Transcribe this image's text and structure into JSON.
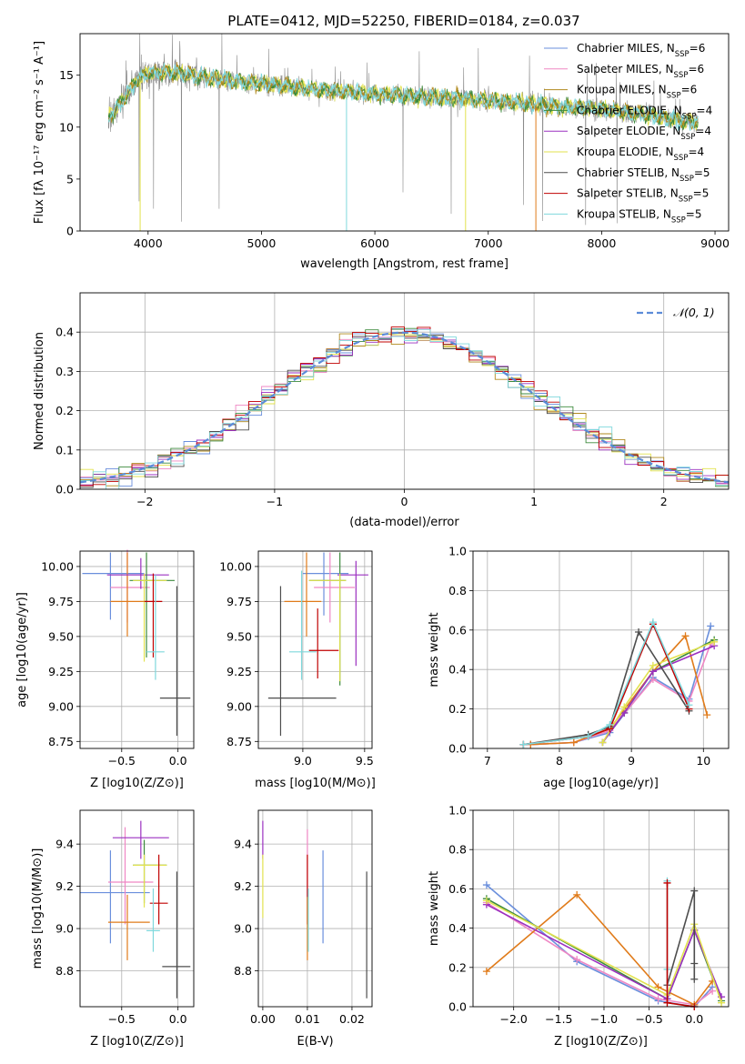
{
  "figure": {
    "title": "PLATE=0412, MJD=52250, FIBERID=0184, z=0.037"
  },
  "colors": {
    "Chabrier MILES": "#6a8fdc",
    "Salpeter MILES": "#ef87c4",
    "Kroupa MILES": "#b08a1e",
    "Chabrier ELODIE": "#3c8a3c",
    "Salpeter ELODIE": "#9b30c0",
    "Kroupa ELODIE": "#e2e24e",
    "Chabrier STELIB": "#4d4d4d",
    "Salpeter STELIB": "#c00000",
    "Kroupa STELIB": "#7fd8dc",
    "normal": "#5b8bd8",
    "orange": "#e07b1a",
    "grid": "#b0b0b0"
  },
  "chart_data": [
    {
      "id": "spectrum",
      "type": "line",
      "xlabel": "wavelength [Angstrom, rest frame]",
      "ylabel": "Flux [fλ 10⁻¹⁷ erg cm⁻² s⁻¹ A⁻¹]",
      "xlim": [
        3400,
        9120
      ],
      "ylim": [
        0,
        19
      ],
      "xticks": [
        4000,
        5000,
        6000,
        7000,
        8000,
        9000
      ],
      "yticks": [
        0,
        5,
        10,
        15
      ],
      "legend_position": "top-right",
      "series": [
        {
          "name": "Chabrier MILES, N_SSP=6",
          "color_key": "Chabrier MILES"
        },
        {
          "name": "Salpeter MILES, N_SSP=6",
          "color_key": "Salpeter MILES"
        },
        {
          "name": "Kroupa MILES, N_SSP=6",
          "color_key": "Kroupa MILES"
        },
        {
          "name": "Chabrier ELODIE, N_SSP=4",
          "color_key": "Chabrier ELODIE"
        },
        {
          "name": "Salpeter ELODIE, N_SSP=4",
          "color_key": "Salpeter ELODIE"
        },
        {
          "name": "Kroupa ELODIE, N_SSP=4",
          "color_key": "Kroupa ELODIE"
        },
        {
          "name": "Chabrier STELIB, N_SSP=5",
          "color_key": "Chabrier STELIB"
        },
        {
          "name": "Salpeter STELIB, N_SSP=5",
          "color_key": "Salpeter STELIB"
        },
        {
          "name": "Kroupa STELIB, N_SSP=5",
          "color_key": "Kroupa STELIB"
        }
      ],
      "continuum": {
        "x": [
          3650,
          3700,
          3800,
          3900,
          4000,
          4200,
          4500,
          5000,
          5500,
          6000,
          6500,
          7000,
          7500,
          8000,
          8500,
          8850
        ],
        "y": [
          11.0,
          11.5,
          13.0,
          14.5,
          15.2,
          15.3,
          14.8,
          14.2,
          13.6,
          13.2,
          12.9,
          12.6,
          12.1,
          11.7,
          11.0,
          10.4
        ]
      },
      "data_range": [
        3650,
        8850
      ]
    },
    {
      "id": "residuals",
      "type": "step",
      "xlabel": "(data-model)/error",
      "ylabel": "Normed distribution",
      "xlim": [
        -2.5,
        2.5
      ],
      "ylim": [
        0,
        0.5
      ],
      "xticks": [
        -2,
        -1,
        0,
        1,
        2
      ],
      "yticks": [
        0.0,
        0.1,
        0.2,
        0.3,
        0.4
      ],
      "legend_position": "top-right",
      "legend": [
        "𝒩(0, 1)"
      ],
      "bin_width": 0.1
    },
    {
      "id": "age-vs-Z",
      "type": "errorbar",
      "xlabel": "Z [log10(Z/Z⊙)]",
      "ylabel": "age  [log10(age/yr)]",
      "xlim": [
        -0.87,
        0.14
      ],
      "ylim": [
        8.7,
        10.11
      ],
      "xticks": [
        -0.5,
        0.0
      ],
      "yticks": [
        8.75,
        9.0,
        9.25,
        9.5,
        9.75,
        10.0
      ],
      "points": [
        {
          "color_key": "Chabrier MILES",
          "x": -0.6,
          "y": 9.95,
          "xerr": [
            0.25,
            0.3
          ],
          "yerr": [
            0.33,
            0.15
          ]
        },
        {
          "color_key": "Salpeter MILES",
          "x": -0.45,
          "y": 9.85,
          "xerr": [
            0.15,
            0.2
          ],
          "yerr": [
            0.25,
            0.27
          ]
        },
        {
          "color_key": "orange",
          "x": -0.45,
          "y": 9.75,
          "xerr": [
            0.15,
            0.15
          ],
          "yerr": [
            0.25,
            0.35
          ]
        },
        {
          "color_key": "Salpeter ELODIE",
          "x": -0.33,
          "y": 9.94,
          "xerr": [
            0.3,
            0.25
          ],
          "yerr": [
            0.1,
            0.12
          ]
        },
        {
          "color_key": "Chabrier ELODIE",
          "x": -0.28,
          "y": 9.9,
          "xerr": [
            0.15,
            0.25
          ],
          "yerr": [
            0.55,
            0.2
          ]
        },
        {
          "color_key": "Kroupa ELODIE",
          "x": -0.3,
          "y": 9.9,
          "xerr": [
            0.1,
            0.2
          ],
          "yerr": [
            0.58,
            0.05
          ]
        },
        {
          "color_key": "Salpeter STELIB",
          "x": -0.22,
          "y": 9.75,
          "xerr": [
            0.08,
            0.08
          ],
          "yerr": [
            0.4,
            0.2
          ]
        },
        {
          "color_key": "Kroupa STELIB",
          "x": -0.2,
          "y": 9.39,
          "xerr": [
            0.08,
            0.08
          ],
          "yerr": [
            0.2,
            0.55
          ]
        },
        {
          "color_key": "Chabrier STELIB",
          "x": -0.01,
          "y": 9.06,
          "xerr": [
            0.15,
            0.12
          ],
          "yerr": [
            0.27,
            0.8
          ]
        }
      ]
    },
    {
      "id": "age-vs-mass",
      "type": "errorbar",
      "xlabel": "mass [log10(M/M⊙)]",
      "ylabel": "",
      "xlim": [
        8.64,
        9.56
      ],
      "ylim": [
        8.7,
        10.11
      ],
      "xticks": [
        9.0,
        9.5
      ],
      "yticks": [
        8.75,
        9.0,
        9.25,
        9.5,
        9.75,
        10.0
      ],
      "points": [
        {
          "color_key": "Chabrier MILES",
          "x": 9.17,
          "y": 9.95,
          "xerr": [
            0.17,
            0.2
          ],
          "yerr": [
            0.3,
            0.15
          ]
        },
        {
          "color_key": "Salpeter MILES",
          "x": 9.22,
          "y": 9.85,
          "xerr": [
            0.13,
            0.2
          ],
          "yerr": [
            0.25,
            0.25
          ]
        },
        {
          "color_key": "orange",
          "x": 9.03,
          "y": 9.75,
          "xerr": [
            0.18,
            0.12
          ],
          "yerr": [
            0.25,
            0.35
          ]
        },
        {
          "color_key": "Salpeter ELODIE",
          "x": 9.43,
          "y": 9.94,
          "xerr": [
            0.15,
            0.1
          ],
          "yerr": [
            0.65,
            0.1
          ]
        },
        {
          "color_key": "Chabrier ELODIE",
          "x": 9.3,
          "y": 9.9,
          "xerr": [
            0.25,
            0.05
          ],
          "yerr": [
            0.75,
            0.2
          ]
        },
        {
          "color_key": "Kroupa ELODIE",
          "x": 9.3,
          "y": 9.9,
          "xerr": [
            0.25,
            0.05
          ],
          "yerr": [
            0.72,
            0.05
          ]
        },
        {
          "color_key": "Salpeter STELIB",
          "x": 9.12,
          "y": 9.4,
          "xerr": [
            0.07,
            0.17
          ],
          "yerr": [
            0.2,
            0.3
          ]
        },
        {
          "color_key": "Kroupa STELIB",
          "x": 8.99,
          "y": 9.39,
          "xerr": [
            0.1,
            0.12
          ],
          "yerr": [
            0.2,
            0.58
          ]
        },
        {
          "color_key": "Chabrier STELIB",
          "x": 8.82,
          "y": 9.06,
          "xerr": [
            0.1,
            0.45
          ],
          "yerr": [
            0.27,
            0.8
          ]
        }
      ]
    },
    {
      "id": "massweight-vs-age",
      "type": "line",
      "xlabel": "age  [log10(age/yr)]",
      "ylabel": "mass weight",
      "xlim": [
        6.8,
        10.35
      ],
      "ylim": [
        0,
        1.0
      ],
      "xticks": [
        7,
        8,
        9,
        10
      ],
      "yticks": [
        0.0,
        0.2,
        0.4,
        0.6,
        0.8,
        1.0
      ],
      "series": [
        {
          "color_key": "Chabrier MILES",
          "x": [
            7.6,
            8.2,
            8.7,
            9.3,
            9.8,
            10.1
          ],
          "y": [
            0.02,
            0.03,
            0.08,
            0.36,
            0.25,
            0.62
          ]
        },
        {
          "color_key": "Salpeter MILES",
          "x": [
            7.6,
            8.2,
            8.7,
            9.3,
            9.8,
            10.1
          ],
          "y": [
            0.02,
            0.03,
            0.09,
            0.35,
            0.24,
            0.53
          ]
        },
        {
          "color_key": "orange",
          "x": [
            7.6,
            8.2,
            8.7,
            9.3,
            9.75,
            10.05
          ],
          "y": [
            0.02,
            0.03,
            0.1,
            0.39,
            0.57,
            0.17
          ]
        },
        {
          "color_key": "Chabrier ELODIE",
          "x": [
            8.6,
            8.9,
            9.3,
            10.15
          ],
          "y": [
            0.03,
            0.18,
            0.39,
            0.55
          ]
        },
        {
          "color_key": "Salpeter ELODIE",
          "x": [
            8.6,
            8.9,
            9.3,
            10.15
          ],
          "y": [
            0.03,
            0.18,
            0.39,
            0.52
          ]
        },
        {
          "color_key": "Kroupa ELODIE",
          "x": [
            8.6,
            8.9,
            9.3,
            10.15
          ],
          "y": [
            0.03,
            0.21,
            0.42,
            0.54
          ]
        },
        {
          "color_key": "Chabrier STELIB",
          "x": [
            7.5,
            8.4,
            8.7,
            9.1,
            9.8
          ],
          "y": [
            0.02,
            0.07,
            0.11,
            0.59,
            0.19
          ]
        },
        {
          "color_key": "Salpeter STELIB",
          "x": [
            7.5,
            8.4,
            8.7,
            9.3,
            9.8
          ],
          "y": [
            0.02,
            0.06,
            0.1,
            0.63,
            0.2
          ]
        },
        {
          "color_key": "Kroupa STELIB",
          "x": [
            7.5,
            8.4,
            8.7,
            9.3,
            9.8
          ],
          "y": [
            0.02,
            0.06,
            0.12,
            0.64,
            0.22
          ]
        }
      ]
    },
    {
      "id": "mass-vs-Z",
      "type": "errorbar",
      "xlabel": "Z [log10(Z/Z⊙)]",
      "ylabel": "mass [log10(M/M⊙)]",
      "xlim": [
        -0.87,
        0.14
      ],
      "ylim": [
        8.63,
        9.56
      ],
      "xticks": [
        -0.5,
        0.0
      ],
      "yticks": [
        8.8,
        9.0,
        9.2,
        9.4
      ],
      "points": [
        {
          "color_key": "Chabrier MILES",
          "x": -0.6,
          "y": 9.17,
          "xerr": [
            0.27,
            0.35
          ],
          "yerr": [
            0.24,
            0.2
          ]
        },
        {
          "color_key": "Salpeter MILES",
          "x": -0.47,
          "y": 9.22,
          "xerr": [
            0.15,
            0.25
          ],
          "yerr": [
            0.2,
            0.26
          ]
        },
        {
          "color_key": "orange",
          "x": -0.45,
          "y": 9.03,
          "xerr": [
            0.17,
            0.2
          ],
          "yerr": [
            0.18,
            0.13
          ]
        },
        {
          "color_key": "Salpeter ELODIE",
          "x": -0.33,
          "y": 9.43,
          "xerr": [
            0.25,
            0.25
          ],
          "yerr": [
            0.1,
            0.08
          ]
        },
        {
          "color_key": "Chabrier ELODIE",
          "x": -0.3,
          "y": 9.3,
          "xerr": [
            0.1,
            0.2
          ],
          "yerr": [
            0.18,
            0.12
          ]
        },
        {
          "color_key": "Kroupa ELODIE",
          "x": -0.3,
          "y": 9.3,
          "xerr": [
            0.1,
            0.2
          ],
          "yerr": [
            0.2,
            0.05
          ]
        },
        {
          "color_key": "Salpeter STELIB",
          "x": -0.17,
          "y": 9.12,
          "xerr": [
            0.08,
            0.08
          ],
          "yerr": [
            0.1,
            0.23
          ]
        },
        {
          "color_key": "Kroupa STELIB",
          "x": -0.22,
          "y": 8.99,
          "xerr": [
            0.06,
            0.06
          ],
          "yerr": [
            0.1,
            0.2
          ]
        },
        {
          "color_key": "Chabrier STELIB",
          "x": -0.01,
          "y": 8.82,
          "xerr": [
            0.13,
            0.12
          ],
          "yerr": [
            0.15,
            0.45
          ]
        }
      ]
    },
    {
      "id": "mass-vs-EBV",
      "type": "errorbar",
      "xlabel": "E(B-V)",
      "ylabel": "",
      "xlim": [
        -0.001,
        0.0245
      ],
      "ylim": [
        8.63,
        9.56
      ],
      "xticks": [
        0.0,
        0.01,
        0.02
      ],
      "yticks": [
        8.8,
        9.0,
        9.2,
        9.4
      ],
      "points": [
        {
          "color_key": "Salpeter ELODIE",
          "x": 0.0,
          "y": 9.43,
          "xerr": [
            0,
            0
          ],
          "yerr": [
            0.1,
            0.08
          ]
        },
        {
          "color_key": "Kroupa ELODIE",
          "x": 0.0,
          "y": 9.3,
          "xerr": [
            0,
            0
          ],
          "yerr": [
            0.25,
            0.05
          ]
        },
        {
          "color_key": "Salpeter MILES",
          "x": 0.01,
          "y": 9.22,
          "xerr": [
            0,
            0
          ],
          "yerr": [
            0.2,
            0.25
          ]
        },
        {
          "color_key": "Salpeter STELIB",
          "x": 0.01,
          "y": 9.12,
          "xerr": [
            0,
            0
          ],
          "yerr": [
            0.1,
            0.23
          ]
        },
        {
          "color_key": "orange",
          "x": 0.01,
          "y": 9.03,
          "xerr": [
            0,
            0
          ],
          "yerr": [
            0.18,
            0.12
          ]
        },
        {
          "color_key": "Kroupa STELIB",
          "x": 0.0102,
          "y": 8.99,
          "xerr": [
            0,
            0
          ],
          "yerr": [
            0.1,
            0.2
          ]
        },
        {
          "color_key": "Chabrier MILES",
          "x": 0.0135,
          "y": 9.1,
          "xerr": [
            0,
            0
          ],
          "yerr": [
            0.17,
            0.27
          ]
        },
        {
          "color_key": "Chabrier STELIB",
          "x": 0.0233,
          "y": 8.97,
          "xerr": [
            0,
            0
          ],
          "yerr": [
            0.3,
            0.3
          ]
        }
      ]
    },
    {
      "id": "massweight-vs-Z",
      "type": "line",
      "xlabel": "Z [log10(Z/Z⊙)]",
      "ylabel": "mass weight",
      "xlim": [
        -2.45,
        0.38
      ],
      "ylim": [
        0,
        1.0
      ],
      "xticks": [
        -2.0,
        -1.5,
        -1.0,
        -0.5,
        0.0
      ],
      "yticks": [
        0.0,
        0.2,
        0.4,
        0.6,
        0.8,
        1.0
      ],
      "series": [
        {
          "color_key": "Chabrier MILES",
          "x": [
            -2.3,
            -1.3,
            -0.4,
            0.0,
            0.2
          ],
          "y": [
            0.62,
            0.23,
            0.03,
            0.0,
            0.1
          ]
        },
        {
          "color_key": "Salpeter MILES",
          "x": [
            -2.3,
            -1.3,
            -0.4,
            0.0,
            0.2
          ],
          "y": [
            0.53,
            0.24,
            0.04,
            0.01,
            0.08
          ]
        },
        {
          "color_key": "orange",
          "x": [
            -2.3,
            -1.3,
            -0.4,
            0.0,
            0.2
          ],
          "y": [
            0.18,
            0.57,
            0.1,
            0.01,
            0.13
          ]
        },
        {
          "color_key": "Chabrier ELODIE",
          "x": [
            -2.3,
            -0.3,
            0.0,
            0.3
          ],
          "y": [
            0.55,
            0.04,
            0.39,
            0.03
          ]
        },
        {
          "color_key": "Salpeter ELODIE",
          "x": [
            -2.3,
            -0.3,
            0.0,
            0.3
          ],
          "y": [
            0.52,
            0.04,
            0.39,
            0.05
          ]
        },
        {
          "color_key": "Kroupa ELODIE",
          "x": [
            -2.3,
            -0.3,
            0.0,
            0.3
          ],
          "y": [
            0.54,
            0.06,
            0.42,
            0.02
          ]
        },
        {
          "color_key": "Chabrier STELIB",
          "x": [
            -0.3,
            0.0,
            0.0,
            0.0
          ],
          "y": [
            0.11,
            0.59,
            0.22,
            0.14
          ]
        },
        {
          "color_key": "Kroupa STELIB",
          "x": [
            -0.3,
            -0.3,
            -0.3,
            0.0
          ],
          "y": [
            0.64,
            0.19,
            0.02,
            0.0
          ]
        },
        {
          "color_key": "Salpeter STELIB",
          "x": [
            -0.3,
            -0.3,
            0.0
          ],
          "y": [
            0.63,
            0.02,
            0.0
          ]
        }
      ]
    }
  ]
}
